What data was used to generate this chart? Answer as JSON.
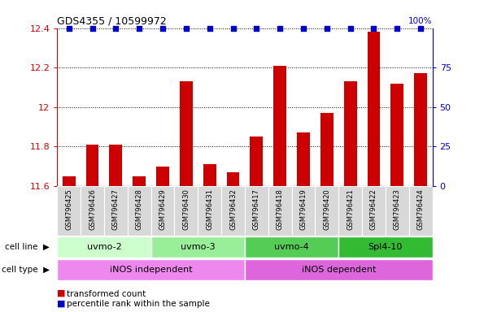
{
  "title": "GDS4355 / 10599972",
  "samples": [
    "GSM796425",
    "GSM796426",
    "GSM796427",
    "GSM796428",
    "GSM796429",
    "GSM796430",
    "GSM796431",
    "GSM796432",
    "GSM796417",
    "GSM796418",
    "GSM796419",
    "GSM796420",
    "GSM796421",
    "GSM796422",
    "GSM796423",
    "GSM796424"
  ],
  "bar_values": [
    11.65,
    11.81,
    11.81,
    11.65,
    11.7,
    12.13,
    11.71,
    11.67,
    11.85,
    12.21,
    11.87,
    11.97,
    12.13,
    12.38,
    12.12,
    12.17
  ],
  "percentile_values": [
    100,
    100,
    100,
    100,
    100,
    100,
    100,
    100,
    100,
    100,
    100,
    100,
    100,
    100,
    100,
    100
  ],
  "ylim_left": [
    11.6,
    12.4
  ],
  "ylim_right": [
    0,
    100
  ],
  "yticks_left": [
    11.6,
    11.8,
    12.0,
    12.2,
    12.4
  ],
  "yticks_right": [
    0,
    25,
    50,
    75
  ],
  "bar_color": "#cc0000",
  "dot_color": "#0000cc",
  "cell_lines": [
    {
      "label": "uvmo-2",
      "start": 0,
      "end": 4,
      "color": "#ccffcc"
    },
    {
      "label": "uvmo-3",
      "start": 4,
      "end": 8,
      "color": "#99ee99"
    },
    {
      "label": "uvmo-4",
      "start": 8,
      "end": 12,
      "color": "#55cc55"
    },
    {
      "label": "Spl4-10",
      "start": 12,
      "end": 16,
      "color": "#33bb33"
    }
  ],
  "cell_types": [
    {
      "label": "iNOS independent",
      "start": 0,
      "end": 8,
      "color": "#ee88ee"
    },
    {
      "label": "iNOS dependent",
      "start": 8,
      "end": 16,
      "color": "#dd66dd"
    }
  ],
  "legend_bar_label": "transformed count",
  "legend_dot_label": "percentile rank within the sample",
  "bar_color_legend": "#cc0000",
  "dot_color_legend": "#0000cc",
  "xtick_bg_color": "#d8d8d8",
  "grid_color": "#000000",
  "cell_line_label": "cell line",
  "cell_type_label": "cell type"
}
